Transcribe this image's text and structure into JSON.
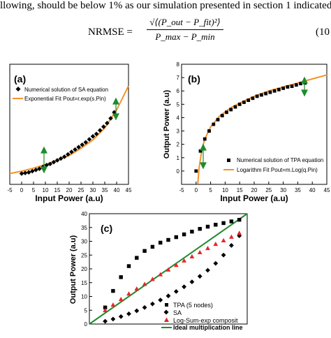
{
  "paper": {
    "text_line": "llowing, should be below 1% as our simulation presented in section 1 indicated",
    "equation": {
      "label": "NRMSE =",
      "numerator": "√⟨(P_out − P_fit)²⟩",
      "denominator": "P_max − P_min",
      "number": "(10"
    }
  },
  "chart_data": [
    {
      "type": "scatter",
      "panel": "(a)",
      "xlabel": "Input Power (a.u)",
      "ylabel": "",
      "xlim": [
        -5,
        45
      ],
      "ylim": [
        0,
        1
      ],
      "xticks": [
        "-5",
        "0",
        "5",
        "10",
        "15",
        "20",
        "25",
        "30",
        "35",
        "40",
        "45"
      ],
      "legend": [
        "Numerical solution of SA equation",
        "Exponential Fit P_out=r.exp(s.P_in)"
      ],
      "legend_placement": "top-left",
      "series": [
        {
          "name": "Numerical solution of SA equation",
          "style": "diamond",
          "x": [
            0,
            1.5,
            3,
            4.5,
            6,
            7.5,
            9,
            10.5,
            12,
            13.5,
            15,
            16.5,
            18,
            19.5,
            21,
            22.5,
            24,
            25.5,
            27,
            28.5,
            30,
            31.5,
            33,
            34.5,
            36,
            37.5,
            39
          ],
          "y": [
            0.09,
            0.095,
            0.1,
            0.11,
            0.12,
            0.13,
            0.145,
            0.16,
            0.17,
            0.185,
            0.2,
            0.215,
            0.23,
            0.25,
            0.27,
            0.29,
            0.31,
            0.33,
            0.35,
            0.375,
            0.4,
            0.42,
            0.45,
            0.48,
            0.51,
            0.55,
            0.6
          ]
        },
        {
          "name": "Exponential Fit P_out=r.exp(s.P_in)",
          "style": "line",
          "color": "#f5922b",
          "x": [
            -5,
            0,
            5,
            10,
            15,
            20,
            25,
            30,
            35,
            40,
            45
          ],
          "y": [
            0.09,
            0.11,
            0.135,
            0.165,
            0.2,
            0.24,
            0.3,
            0.37,
            0.47,
            0.62,
            0.82
          ]
        }
      ]
    },
    {
      "type": "scatter",
      "panel": "(b)",
      "xlabel": "Input Power (a.u)",
      "ylabel": "Output Power (a.u)",
      "xlim": [
        -5,
        45
      ],
      "ylim": [
        -1,
        8
      ],
      "xticks": [
        "-5",
        "0",
        "5",
        "10",
        "15",
        "20",
        "25",
        "30",
        "35",
        "40",
        "45"
      ],
      "yticks": [
        "0",
        "1",
        "2",
        "3",
        "4",
        "5",
        "6",
        "7",
        "8"
      ],
      "legend": [
        "Numerical solution of TPA equation",
        "Logarithm Fit P_out=m.Log(q.P_in)"
      ],
      "legend_placement": "bottom-right",
      "series": [
        {
          "name": "Numerical solution of TPA equation",
          "style": "square",
          "x": [
            0,
            1.5,
            3,
            4.5,
            6,
            7.5,
            9,
            10.5,
            12,
            13.5,
            15,
            16.5,
            18,
            19.5,
            21,
            22.5,
            24,
            25.5,
            27,
            28.5,
            30,
            31.5,
            33,
            34.5,
            36,
            37.5
          ],
          "y": [
            0,
            1.5,
            2.4,
            3.0,
            3.5,
            3.85,
            4.15,
            4.4,
            4.6,
            4.8,
            5.0,
            5.15,
            5.3,
            5.45,
            5.6,
            5.7,
            5.8,
            5.9,
            6.0,
            6.1,
            6.2,
            6.3,
            6.35,
            6.45,
            6.55,
            6.6
          ]
        },
        {
          "name": "Logarithm Fit P_out=m.Log(q.P_in)",
          "style": "line",
          "color": "#f5922b",
          "x": [
            0.6,
            1,
            2,
            3,
            5,
            8,
            12,
            16,
            20,
            25,
            30,
            35,
            40,
            45
          ],
          "y": [
            -0.95,
            0.2,
            1.6,
            2.4,
            3.3,
            4.1,
            4.75,
            5.2,
            5.6,
            6.0,
            6.3,
            6.6,
            6.9,
            7.2
          ]
        }
      ]
    },
    {
      "type": "scatter",
      "panel": "(c)",
      "xlabel": "",
      "ylabel": "Output Power (a.u)",
      "xlim": [
        0,
        40
      ],
      "ylim": [
        0,
        40
      ],
      "yticks": [
        "0",
        "5",
        "10",
        "15",
        "20",
        "25",
        "30",
        "35",
        "40"
      ],
      "legend": [
        "TPA (5 nodes)",
        "SA",
        "Log-Sum-exp composit",
        "Ideal multiplication line"
      ],
      "legend_placement": "bottom-right",
      "series": [
        {
          "name": "TPA (5 nodes)",
          "style": "square",
          "x": [
            4,
            6,
            8,
            10,
            12,
            14,
            16,
            18,
            20,
            22,
            24,
            26,
            28,
            30,
            32,
            34,
            36,
            38
          ],
          "y": [
            6,
            12,
            17,
            21,
            24,
            26.5,
            28,
            29.5,
            30.5,
            31.5,
            32.5,
            33.5,
            34.5,
            35.3,
            36,
            36.6,
            37.2,
            37.8
          ]
        },
        {
          "name": "SA",
          "style": "diamond",
          "x": [
            4,
            6,
            8,
            10,
            12,
            14,
            16,
            18,
            20,
            22,
            24,
            26,
            28,
            30,
            32,
            34,
            36,
            38
          ],
          "y": [
            1,
            1.8,
            2.7,
            3.7,
            4.8,
            6,
            7.3,
            8.7,
            10.2,
            11.8,
            13.5,
            15.3,
            17.3,
            19.5,
            22,
            25,
            28.5,
            32
          ]
        },
        {
          "name": "Log-Sum-exp composit",
          "style": "triangle",
          "color": "#e8262b",
          "x": [
            4,
            6,
            8,
            10,
            12,
            14,
            16,
            18,
            20,
            22,
            24,
            26,
            28,
            30,
            32,
            34,
            36,
            38
          ],
          "y": [
            5,
            7,
            9,
            11,
            12.8,
            14.5,
            16.3,
            18,
            19.7,
            21.4,
            23,
            24.5,
            26,
            27.5,
            29,
            30.3,
            31.6,
            33
          ]
        },
        {
          "name": "Ideal multiplication line",
          "style": "line",
          "color": "#1e8b2c",
          "x": [
            0,
            40
          ],
          "y": [
            0,
            40
          ]
        }
      ]
    }
  ],
  "panels": {
    "a": {
      "label": "(a)",
      "legend1": "Numerical solution of SA equation",
      "legend2": "Exponential Fit Pout=r.exp(s.Pin)",
      "xlabel": "Input Power (a.u)"
    },
    "b": {
      "label": "(b)",
      "legend1": "Numerical solution of TPA equation",
      "legend2": "Logarithm Fit Pout=m.Log(q.Pin)",
      "xlabel": "Input Power (a.u)",
      "ylabel": "Output Power (a.u)"
    },
    "c": {
      "label": "(c)",
      "legend1": "TPA (5 nodes)",
      "legend2": "SA",
      "legend3": "Log-Sum-exp composit",
      "legend4": "Ideal multiplication line",
      "ylabel": "Output Power (a.u)"
    }
  },
  "colors": {
    "fit": "#f5922b",
    "arrow": "#1e8b2c",
    "ideal": "#1e8b2c",
    "composite": "#e8262b",
    "marker": "#000000"
  }
}
